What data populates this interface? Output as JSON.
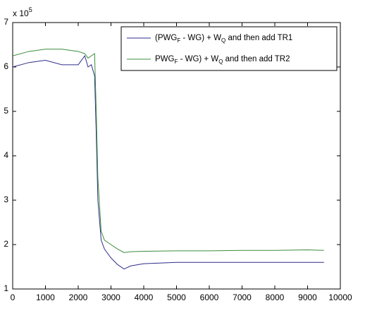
{
  "chart_data": {
    "type": "line",
    "axis_multiplier": "x 10",
    "axis_multiplier_exponent": "5",
    "x": [
      0,
      500,
      1000,
      1500,
      2000,
      2200,
      2300,
      2400,
      2500,
      2550,
      2600,
      2700,
      2800,
      3000,
      3200,
      3400,
      3600,
      4000,
      5000,
      6000,
      7000,
      8000,
      9000,
      9500
    ],
    "series": [
      {
        "name": [
          {
            "text": "(PWG"
          },
          {
            "text": "F",
            "sub": true
          },
          {
            "text": " - WG) + W"
          },
          {
            "text": "Q",
            "sub": true
          },
          {
            "text": " and then add TR1"
          }
        ],
        "color": "#2e2e8c",
        "values": [
          6.0,
          6.1,
          6.15,
          6.05,
          6.05,
          6.25,
          6.0,
          6.05,
          5.8,
          4.5,
          3.0,
          2.1,
          1.9,
          1.7,
          1.55,
          1.45,
          1.52,
          1.57,
          1.6,
          1.6,
          1.6,
          1.6,
          1.6,
          1.6
        ]
      },
      {
        "name": [
          {
            "text": "PWG"
          },
          {
            "text": "F",
            "sub": true
          },
          {
            "text": " - WG) + W"
          },
          {
            "text": "Q",
            "sub": true
          },
          {
            "text": " and then add TR2"
          }
        ],
        "color": "#3c8c3c",
        "values": [
          6.25,
          6.35,
          6.4,
          6.4,
          6.35,
          6.3,
          6.2,
          6.25,
          6.3,
          5.0,
          3.5,
          2.3,
          2.1,
          2.0,
          1.9,
          1.82,
          1.84,
          1.85,
          1.86,
          1.86,
          1.87,
          1.87,
          1.88,
          1.87
        ]
      }
    ],
    "xlim": [
      0,
      10000
    ],
    "xticks": [
      0,
      1000,
      2000,
      3000,
      4000,
      5000,
      6000,
      7000,
      8000,
      9000,
      10000
    ],
    "ylim": [
      1,
      7
    ],
    "yticks": [
      1,
      2,
      3,
      4,
      5,
      6,
      7
    ],
    "legend": "top-right"
  }
}
